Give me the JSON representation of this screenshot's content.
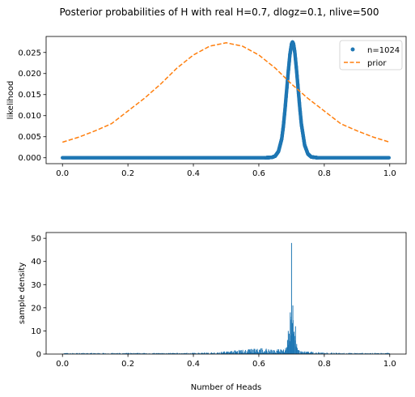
{
  "figure": {
    "suptitle": "Posterior probabilities of H with real H=0.7, dlogz=0.1, nlive=500"
  },
  "colors": {
    "series_blue": "#1f77b4",
    "series_orange": "#ff7f0e"
  },
  "chart_data": [
    {
      "type": "scatter",
      "title": "",
      "xlabel": "",
      "ylabel": "likelihood",
      "xlim": [
        -0.05,
        1.05
      ],
      "ylim": [
        -0.0014,
        0.0288
      ],
      "xticks": [
        0.0,
        0.2,
        0.4,
        0.6,
        0.8,
        1.0
      ],
      "xtick_labels": [
        "0.0",
        "0.2",
        "0.4",
        "0.6",
        "0.8",
        "1.0"
      ],
      "yticks": [
        0.0,
        0.005,
        0.01,
        0.015,
        0.02,
        0.025
      ],
      "ytick_labels": [
        "0.000",
        "0.005",
        "0.010",
        "0.015",
        "0.020",
        "0.025"
      ],
      "legend": "top-right",
      "series": [
        {
          "name": "n=1024",
          "kind": "scatter",
          "color": "#1f77b4",
          "x": [
            0.0,
            0.04,
            0.08,
            0.12,
            0.16,
            0.2,
            0.24,
            0.28,
            0.32,
            0.36,
            0.4,
            0.44,
            0.48,
            0.52,
            0.56,
            0.6,
            0.62,
            0.64,
            0.65,
            0.66,
            0.67,
            0.675,
            0.68,
            0.685,
            0.69,
            0.695,
            0.7,
            0.703,
            0.706,
            0.71,
            0.715,
            0.72,
            0.725,
            0.73,
            0.74,
            0.75,
            0.76,
            0.78,
            0.8,
            0.84,
            0.88,
            0.92,
            0.96,
            1.0
          ],
          "y": [
            0.0,
            0.0,
            0.0,
            0.0,
            0.0,
            0.0,
            0.0,
            0.0,
            0.0,
            0.0,
            0.0,
            0.0,
            0.0,
            0.0,
            0.0,
            0.0,
            0.0,
            0.0001,
            0.0004,
            0.0015,
            0.0045,
            0.0075,
            0.0115,
            0.016,
            0.0205,
            0.0245,
            0.027,
            0.0275,
            0.027,
            0.025,
            0.021,
            0.0165,
            0.012,
            0.008,
            0.003,
            0.0009,
            0.0002,
            0.0,
            0.0,
            0.0,
            0.0,
            0.0,
            0.0,
            0.0
          ]
        },
        {
          "name": "prior",
          "kind": "dashed-line",
          "color": "#ff7f0e",
          "x": [
            0.0,
            0.05,
            0.1,
            0.15,
            0.2,
            0.25,
            0.3,
            0.35,
            0.4,
            0.45,
            0.5,
            0.55,
            0.6,
            0.65,
            0.7,
            0.75,
            0.8,
            0.85,
            0.9,
            0.95,
            1.0
          ],
          "y": [
            0.0037,
            0.0049,
            0.0064,
            0.0081,
            0.0111,
            0.0141,
            0.0175,
            0.0213,
            0.0244,
            0.0265,
            0.0273,
            0.0265,
            0.0244,
            0.0213,
            0.0175,
            0.0141,
            0.0111,
            0.0081,
            0.0064,
            0.0049,
            0.0037
          ]
        }
      ]
    },
    {
      "type": "bar",
      "title": "",
      "xlabel": "Number of Heads",
      "ylabel": "sample density",
      "xlim": [
        -0.05,
        1.05
      ],
      "ylim": [
        0,
        52.5
      ],
      "xticks": [
        0.0,
        0.2,
        0.4,
        0.6,
        0.8,
        1.0
      ],
      "xtick_labels": [
        "0.0",
        "0.2",
        "0.4",
        "0.6",
        "0.8",
        "1.0"
      ],
      "yticks": [
        0,
        10,
        20,
        30,
        40,
        50
      ],
      "ytick_labels": [
        "0",
        "10",
        "20",
        "30",
        "40",
        "50"
      ],
      "color": "#1f77b4",
      "peak_x": 0.7,
      "peak_value": 48
    }
  ]
}
